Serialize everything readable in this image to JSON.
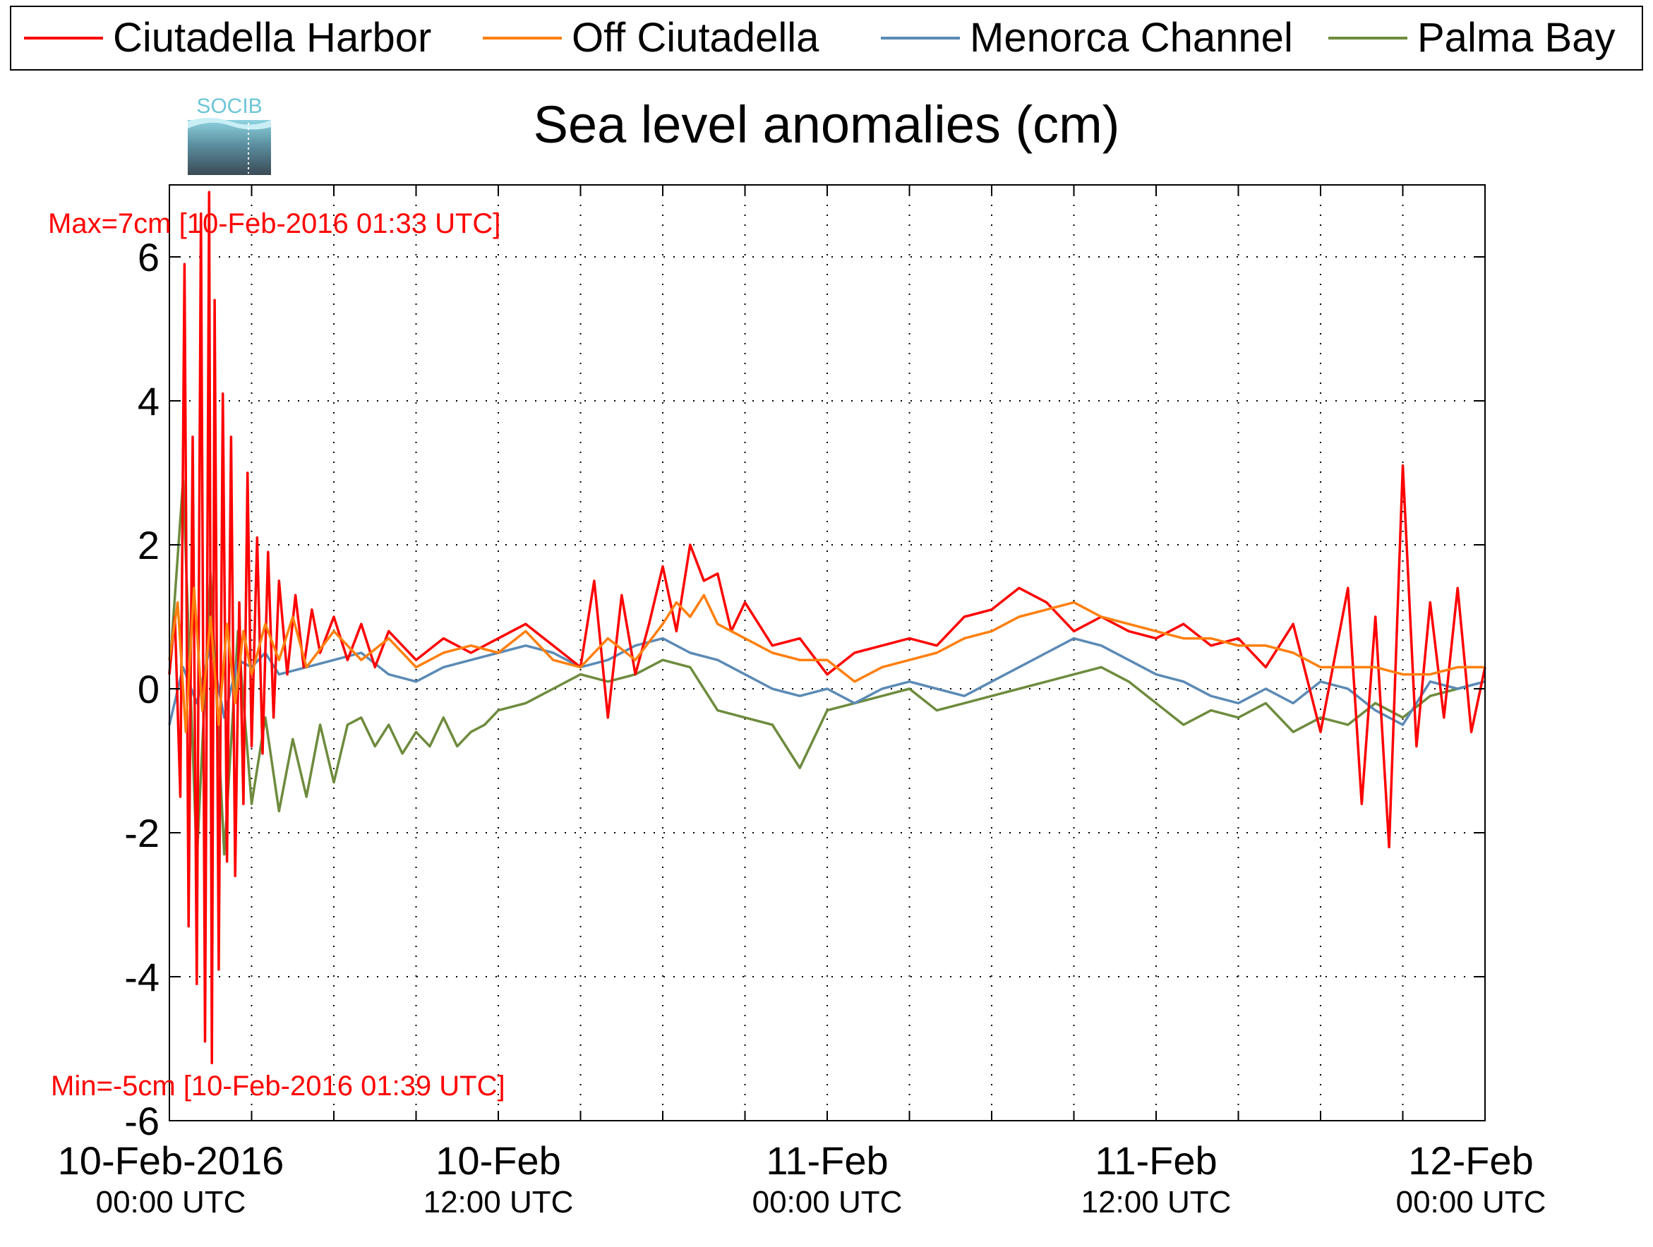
{
  "legend": {
    "items": [
      {
        "label": "Ciutadella Harbor",
        "color": "#ff0000"
      },
      {
        "label": "Off Ciutadella",
        "color": "#ff7f0e"
      },
      {
        "label": "Menorca Channel",
        "color": "#5b8ab5"
      },
      {
        "label": "Palma Bay",
        "color": "#6e8b3d"
      }
    ]
  },
  "logo": {
    "text": "SOCIB",
    "icon": "socib-logo"
  },
  "chart_data": {
    "type": "line",
    "title": "Sea level anomalies (cm)",
    "xlabel": "",
    "ylabel": "",
    "x_range_hours": [
      0,
      48
    ],
    "xlim": [
      "10-Feb-2016 00:00 UTC",
      "12-Feb-2016 00:00 UTC"
    ],
    "ylim": [
      -6,
      7
    ],
    "yticks": [
      -6,
      -4,
      -2,
      0,
      2,
      4,
      6
    ],
    "xticks": [
      {
        "hour": 0,
        "line1": "10-Feb-2016",
        "line2": "00:00 UTC"
      },
      {
        "hour": 12,
        "line1": "10-Feb",
        "line2": "12:00 UTC"
      },
      {
        "hour": 24,
        "line1": "11-Feb",
        "line2": "00:00 UTC"
      },
      {
        "hour": 36,
        "line1": "11-Feb",
        "line2": "12:00 UTC"
      },
      {
        "hour": 48,
        "line1": "12-Feb",
        "line2": "00:00 UTC"
      }
    ],
    "minor_xticks_hours": [
      3,
      6,
      9,
      15,
      18,
      21,
      27,
      30,
      33,
      39,
      42,
      45
    ],
    "grid": true,
    "legend_position": "top",
    "annotations": {
      "max": "Max=7cm [10-Feb-2016 01:33 UTC]",
      "min": "Min=-5cm [10-Feb-2016 01:39 UTC]",
      "color": "#ff0000"
    },
    "series": [
      {
        "name": "Ciutadella Harbor",
        "color": "#ff0000",
        "x": [
          0,
          0.2,
          0.4,
          0.55,
          0.7,
          0.85,
          1.0,
          1.15,
          1.3,
          1.45,
          1.55,
          1.65,
          1.8,
          1.95,
          2.1,
          2.25,
          2.4,
          2.55,
          2.7,
          2.85,
          3.0,
          3.2,
          3.4,
          3.6,
          3.8,
          4.0,
          4.3,
          4.6,
          4.9,
          5.2,
          5.5,
          6,
          6.5,
          7,
          7.5,
          8,
          9,
          10,
          11,
          12,
          13,
          14,
          15,
          15.5,
          16,
          16.5,
          17,
          17.5,
          18,
          18.5,
          19,
          19.5,
          20,
          20.5,
          21,
          22,
          23,
          24,
          25,
          26,
          27,
          28,
          29,
          30,
          31,
          32,
          33,
          34,
          35,
          36,
          37,
          38,
          39,
          40,
          41,
          42,
          43,
          43.5,
          44,
          44.5,
          45,
          45.5,
          46,
          46.5,
          47,
          47.5,
          48
        ],
        "y": [
          0.2,
          1.0,
          -1.5,
          5.9,
          -3.3,
          3.5,
          -4.1,
          6.6,
          -4.9,
          6.9,
          -5.2,
          5.4,
          -3.9,
          4.1,
          -2.4,
          3.5,
          -2.6,
          1.2,
          -1.6,
          3.0,
          -0.8,
          2.1,
          -0.9,
          1.9,
          -0.4,
          1.5,
          0.2,
          1.3,
          0.3,
          1.1,
          0.5,
          1.0,
          0.4,
          0.9,
          0.3,
          0.8,
          0.4,
          0.7,
          0.5,
          0.7,
          0.9,
          0.6,
          0.3,
          1.5,
          -0.4,
          1.3,
          0.2,
          0.9,
          1.7,
          0.8,
          2.0,
          1.5,
          1.6,
          0.8,
          1.2,
          0.6,
          0.7,
          0.2,
          0.5,
          0.6,
          0.7,
          0.6,
          1.0,
          1.1,
          1.4,
          1.2,
          0.8,
          1.0,
          0.8,
          0.7,
          0.9,
          0.6,
          0.7,
          0.3,
          0.9,
          -0.6,
          1.4,
          -1.6,
          1.0,
          -2.2,
          3.1,
          -0.8,
          1.2,
          -0.4,
          1.4,
          -0.6,
          0.3
        ]
      },
      {
        "name": "Off Ciutadella",
        "color": "#ff7f0e",
        "x": [
          0,
          0.3,
          0.6,
          0.9,
          1.2,
          1.5,
          1.8,
          2.1,
          2.4,
          2.7,
          3.0,
          3.5,
          4,
          4.5,
          5,
          6,
          7,
          8,
          9,
          10,
          11,
          12,
          13,
          14,
          15,
          16,
          17,
          18,
          18.5,
          19,
          19.5,
          20,
          21,
          22,
          23,
          24,
          25,
          26,
          27,
          28,
          29,
          30,
          31,
          32,
          33,
          34,
          35,
          36,
          37,
          38,
          39,
          40,
          41,
          42,
          43,
          44,
          45,
          46,
          47,
          48
        ],
        "y": [
          0.4,
          1.2,
          -0.6,
          1.4,
          -0.3,
          1.0,
          -0.5,
          0.9,
          -0.2,
          0.8,
          0.2,
          0.9,
          0.4,
          1.0,
          0.3,
          0.8,
          0.4,
          0.7,
          0.3,
          0.5,
          0.6,
          0.5,
          0.8,
          0.4,
          0.3,
          0.7,
          0.4,
          0.9,
          1.2,
          1.0,
          1.3,
          0.9,
          0.7,
          0.5,
          0.4,
          0.4,
          0.1,
          0.3,
          0.4,
          0.5,
          0.7,
          0.8,
          1.0,
          1.1,
          1.2,
          1.0,
          0.9,
          0.8,
          0.7,
          0.7,
          0.6,
          0.6,
          0.5,
          0.3,
          0.3,
          0.3,
          0.2,
          0.2,
          0.3,
          0.3
        ]
      },
      {
        "name": "Menorca Channel",
        "color": "#5b8ab5",
        "x": [
          0,
          0.5,
          1,
          1.5,
          2,
          2.5,
          3,
          3.5,
          4,
          5,
          6,
          7,
          8,
          9,
          10,
          11,
          12,
          13,
          14,
          15,
          16,
          17,
          18,
          19,
          20,
          21,
          22,
          23,
          24,
          25,
          26,
          27,
          28,
          29,
          30,
          31,
          32,
          33,
          34,
          35,
          36,
          37,
          38,
          39,
          40,
          41,
          42,
          43,
          44,
          45,
          46,
          47,
          48
        ],
        "y": [
          -0.5,
          0.3,
          -0.2,
          0.6,
          -0.4,
          0.4,
          0.3,
          0.5,
          0.2,
          0.3,
          0.4,
          0.5,
          0.2,
          0.1,
          0.3,
          0.4,
          0.5,
          0.6,
          0.5,
          0.3,
          0.4,
          0.6,
          0.7,
          0.5,
          0.4,
          0.2,
          0.0,
          -0.1,
          0.0,
          -0.2,
          0.0,
          0.1,
          0.0,
          -0.1,
          0.1,
          0.3,
          0.5,
          0.7,
          0.6,
          0.4,
          0.2,
          0.1,
          -0.1,
          -0.2,
          0.0,
          -0.2,
          0.1,
          0.0,
          -0.3,
          -0.5,
          0.1,
          0.0,
          0.1
        ]
      },
      {
        "name": "Palma Bay",
        "color": "#6e8b3d",
        "x": [
          0,
          0.5,
          1,
          1.5,
          2,
          2.5,
          3,
          3.5,
          4,
          4.5,
          5,
          5.5,
          6,
          6.5,
          7,
          7.5,
          8,
          8.5,
          9,
          9.5,
          10,
          10.5,
          11,
          11.5,
          12,
          13,
          14,
          15,
          16,
          17,
          18,
          19,
          20,
          21,
          22,
          23,
          24,
          25,
          26,
          27,
          28,
          29,
          30,
          31,
          32,
          33,
          34,
          35,
          36,
          37,
          38,
          39,
          40,
          41,
          42,
          43,
          44,
          45,
          46,
          47,
          48
        ],
        "y": [
          0.2,
          2.9,
          -2.4,
          1.6,
          -2.3,
          0.8,
          -1.6,
          -0.4,
          -1.7,
          -0.7,
          -1.5,
          -0.5,
          -1.3,
          -0.5,
          -0.4,
          -0.8,
          -0.5,
          -0.9,
          -0.6,
          -0.8,
          -0.4,
          -0.8,
          -0.6,
          -0.5,
          -0.3,
          -0.2,
          0.0,
          0.2,
          0.1,
          0.2,
          0.4,
          0.3,
          -0.3,
          -0.4,
          -0.5,
          -1.1,
          -0.3,
          -0.2,
          -0.1,
          0.0,
          -0.3,
          -0.2,
          -0.1,
          0.0,
          0.1,
          0.2,
          0.3,
          0.1,
          -0.2,
          -0.5,
          -0.3,
          -0.4,
          -0.2,
          -0.6,
          -0.4,
          -0.5,
          -0.2,
          -0.4,
          -0.1,
          0.0,
          0.1
        ]
      }
    ]
  }
}
